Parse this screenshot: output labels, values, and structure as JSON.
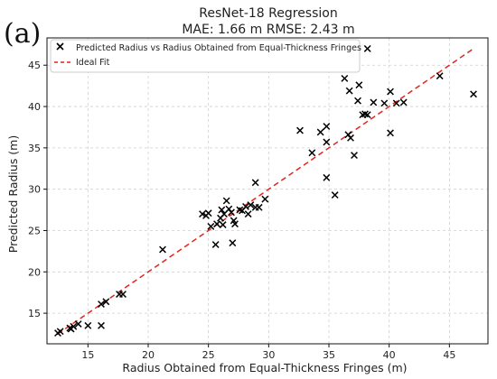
{
  "panel_label": "(a)",
  "chart_data": {
    "type": "scatter",
    "title": "ResNet-18 Regression",
    "subtitle": "MAE: 1.66 m   RMSE: 2.43 m",
    "xlabel": "Radius Obtained from Equal-Thickness Fringes (m)",
    "ylabel": "Predicted Radius (m)",
    "xlim": [
      11.6,
      48.2
    ],
    "ylim": [
      11.3,
      48.3
    ],
    "xticks": [
      15,
      20,
      25,
      30,
      35,
      40,
      45
    ],
    "yticks": [
      15,
      20,
      25,
      30,
      35,
      40,
      45
    ],
    "grid": true,
    "legend_position": "top-left",
    "series": [
      {
        "name": "Predicted Radius vs Radius Obtained from Equal-Thickness Fringes",
        "marker": "x",
        "color": "#000000",
        "points": [
          [
            12.5,
            12.6
          ],
          [
            12.7,
            12.8
          ],
          [
            13.5,
            13.2
          ],
          [
            13.6,
            13.1
          ],
          [
            13.8,
            13.4
          ],
          [
            14.2,
            13.7
          ],
          [
            15.0,
            13.5
          ],
          [
            16.1,
            13.5
          ],
          [
            16.1,
            16.1
          ],
          [
            16.5,
            16.4
          ],
          [
            17.6,
            17.3
          ],
          [
            17.9,
            17.3
          ],
          [
            21.2,
            22.7
          ],
          [
            24.5,
            27.0
          ],
          [
            24.8,
            26.8
          ],
          [
            25.0,
            27.1
          ],
          [
            25.2,
            25.5
          ],
          [
            25.6,
            23.3
          ],
          [
            25.7,
            25.8
          ],
          [
            26.0,
            26.5
          ],
          [
            26.1,
            27.5
          ],
          [
            26.2,
            25.7
          ],
          [
            26.3,
            27.0
          ],
          [
            26.5,
            28.6
          ],
          [
            26.7,
            27.6
          ],
          [
            26.9,
            27.2
          ],
          [
            27.0,
            23.5
          ],
          [
            27.1,
            26.2
          ],
          [
            27.2,
            25.8
          ],
          [
            27.6,
            27.5
          ],
          [
            27.8,
            27.4
          ],
          [
            28.1,
            27.9
          ],
          [
            28.3,
            27.0
          ],
          [
            28.5,
            28.1
          ],
          [
            28.9,
            27.8
          ],
          [
            28.9,
            30.8
          ],
          [
            29.2,
            27.8
          ],
          [
            29.7,
            28.8
          ],
          [
            32.6,
            37.1
          ],
          [
            33.6,
            34.4
          ],
          [
            34.3,
            36.9
          ],
          [
            34.8,
            37.6
          ],
          [
            34.8,
            35.7
          ],
          [
            34.8,
            31.4
          ],
          [
            35.5,
            29.3
          ],
          [
            36.3,
            43.4
          ],
          [
            36.7,
            41.9
          ],
          [
            36.6,
            36.6
          ],
          [
            36.8,
            36.2
          ],
          [
            37.1,
            34.1
          ],
          [
            37.4,
            40.7
          ],
          [
            37.5,
            42.6
          ],
          [
            37.8,
            39.0
          ],
          [
            38.0,
            39.1
          ],
          [
            38.2,
            39.0
          ],
          [
            38.7,
            40.5
          ],
          [
            39.6,
            40.4
          ],
          [
            40.1,
            41.8
          ],
          [
            40.1,
            36.8
          ],
          [
            40.6,
            40.4
          ],
          [
            41.2,
            40.5
          ],
          [
            44.2,
            43.7
          ],
          [
            47.0,
            41.5
          ],
          [
            38.2,
            47.0
          ]
        ]
      },
      {
        "name": "Ideal Fit",
        "type": "line",
        "style": "dashed",
        "color": "#e3241d",
        "x": [
          12.5,
          47.0
        ],
        "y": [
          12.5,
          47.0
        ]
      }
    ]
  }
}
